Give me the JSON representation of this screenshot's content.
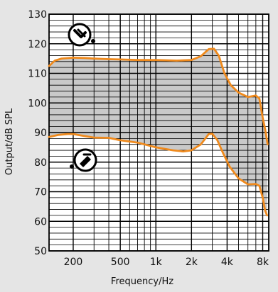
{
  "chart_data": {
    "type": "area",
    "title": "",
    "xlabel": "Frequency/Hz",
    "ylabel": "Output/dB SPL",
    "x_scale": "log",
    "xlim": [
      125,
      9000
    ],
    "ylim": [
      50,
      130
    ],
    "x_ticks": [
      {
        "value": 200,
        "label": "200"
      },
      {
        "value": 500,
        "label": "500"
      },
      {
        "value": 1000,
        "label": "1k"
      },
      {
        "value": 2000,
        "label": "2k"
      },
      {
        "value": 4000,
        "label": "4k"
      },
      {
        "value": 8000,
        "label": "8k"
      }
    ],
    "y_ticks": [
      {
        "value": 50,
        "label": "50"
      },
      {
        "value": 60,
        "label": "60"
      },
      {
        "value": 70,
        "label": "70"
      },
      {
        "value": 80,
        "label": "80"
      },
      {
        "value": 90,
        "label": "90"
      },
      {
        "value": 100,
        "label": "100"
      },
      {
        "value": 110,
        "label": "110"
      },
      {
        "value": 120,
        "label": "120"
      },
      {
        "value": 130,
        "label": "130"
      }
    ],
    "grid": true,
    "minor_grid_step": 2,
    "series": [
      {
        "name": "",
        "marker": "max-output-symbol",
        "points": [
          [
            125,
            112.5
          ],
          [
            140,
            114.3
          ],
          [
            160,
            115
          ],
          [
            200,
            115.3
          ],
          [
            250,
            115.2
          ],
          [
            300,
            115
          ],
          [
            400,
            114.8
          ],
          [
            500,
            114.7
          ],
          [
            700,
            114.5
          ],
          [
            1000,
            114.5
          ],
          [
            1500,
            114.3
          ],
          [
            2000,
            114.5
          ],
          [
            2400,
            115.8
          ],
          [
            2800,
            118.2
          ],
          [
            3100,
            118.3
          ],
          [
            3400,
            116
          ],
          [
            3800,
            110
          ],
          [
            4300,
            106
          ],
          [
            5000,
            103.5
          ],
          [
            6000,
            102
          ],
          [
            7000,
            102.5
          ],
          [
            7500,
            101.5
          ],
          [
            8000,
            95
          ],
          [
            8400,
            91
          ],
          [
            8800,
            86
          ]
        ]
      },
      {
        "name": "",
        "marker": "gain-symbol",
        "points": [
          [
            125,
            88.5
          ],
          [
            150,
            89.2
          ],
          [
            180,
            89.5
          ],
          [
            200,
            89.5
          ],
          [
            250,
            88.8
          ],
          [
            300,
            88.3
          ],
          [
            400,
            88.2
          ],
          [
            500,
            87.4
          ],
          [
            700,
            86.6
          ],
          [
            1000,
            85
          ],
          [
            1400,
            84
          ],
          [
            1700,
            83.6
          ],
          [
            2000,
            84
          ],
          [
            2400,
            86
          ],
          [
            2800,
            89.5
          ],
          [
            3000,
            89.6
          ],
          [
            3300,
            87.5
          ],
          [
            3700,
            83
          ],
          [
            4200,
            78.5
          ],
          [
            5000,
            74.5
          ],
          [
            6000,
            72.5
          ],
          [
            7000,
            72.6
          ],
          [
            7500,
            72
          ],
          [
            8000,
            68
          ],
          [
            8400,
            63.5
          ],
          [
            8700,
            62
          ]
        ]
      }
    ],
    "colors": {
      "curve": "#f08a1c",
      "fill": "#c9c9c9",
      "plot_background": "#ffffff",
      "page_background": "#e5e5e5",
      "grid": "#000000"
    }
  }
}
